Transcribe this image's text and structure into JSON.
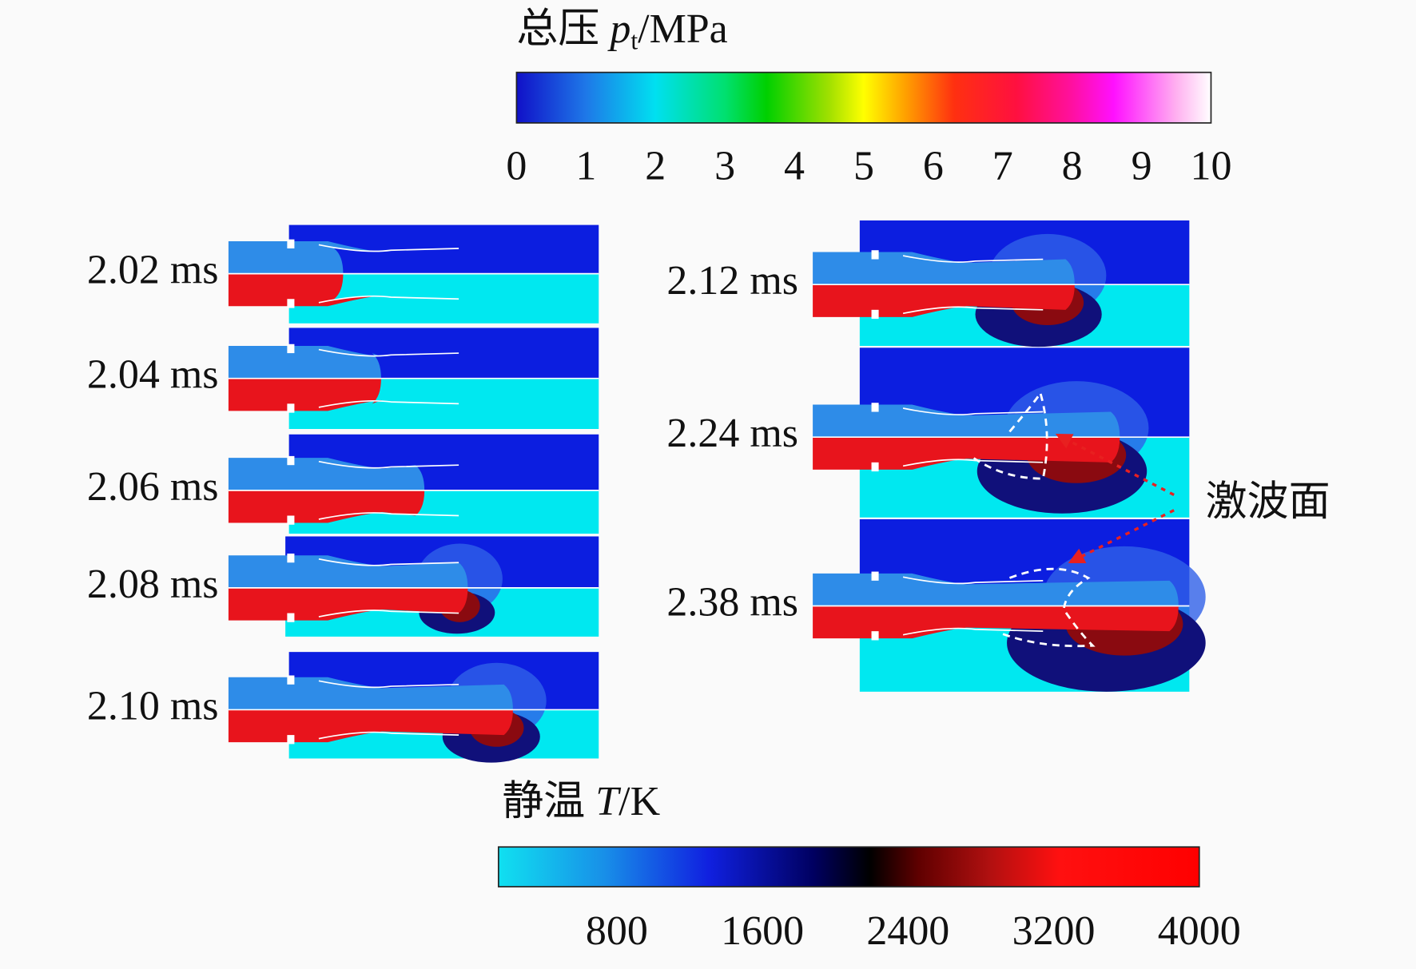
{
  "pressure_colorbar": {
    "title_prefix": "总压 ",
    "symbol": "p",
    "subscript": "t",
    "unit": "/MPa",
    "lim": [
      0,
      10
    ],
    "ticks": [
      0,
      1,
      2,
      3,
      4,
      5,
      6,
      7,
      8,
      9,
      10
    ]
  },
  "temperature_colorbar": {
    "title_prefix": "静温 ",
    "symbol": "T",
    "unit": "/K",
    "lim": [
      150,
      4000
    ],
    "ticks": [
      800,
      1600,
      2400,
      3200,
      4000
    ]
  },
  "panels": [
    {
      "time": "2.02 ms"
    },
    {
      "time": "2.04 ms"
    },
    {
      "time": "2.06 ms"
    },
    {
      "time": "2.08 ms"
    },
    {
      "time": "2.10 ms"
    },
    {
      "time": "2.12 ms"
    },
    {
      "time": "2.24 ms"
    },
    {
      "time": "2.38 ms"
    }
  ],
  "annotation": "激波面"
}
